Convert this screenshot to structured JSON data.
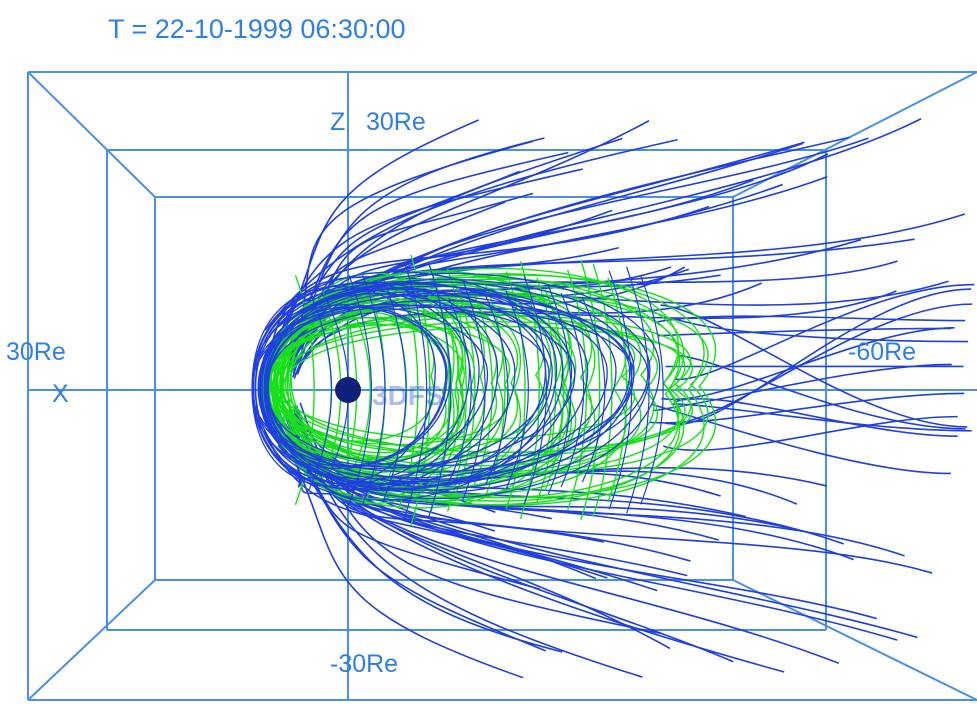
{
  "title": {
    "timestamp": "T = 22-10-1999  06:30:00"
  },
  "axes": {
    "z_axis_label": "Z",
    "z_max_label": "30Re",
    "z_min_label": "-30Re",
    "x_axis_label": "X",
    "x_max_label": "30Re",
    "x_min_label": "-60Re",
    "center_label": "3DFS"
  },
  "colors": {
    "box_lines": "#4a8fe8",
    "open_field_lines": "#1f3fe0",
    "closed_field_lines": "#18e018",
    "earth": "#101f7a",
    "text": "#2f7fe6"
  },
  "icons": {
    "earth": "earth-sphere"
  }
}
